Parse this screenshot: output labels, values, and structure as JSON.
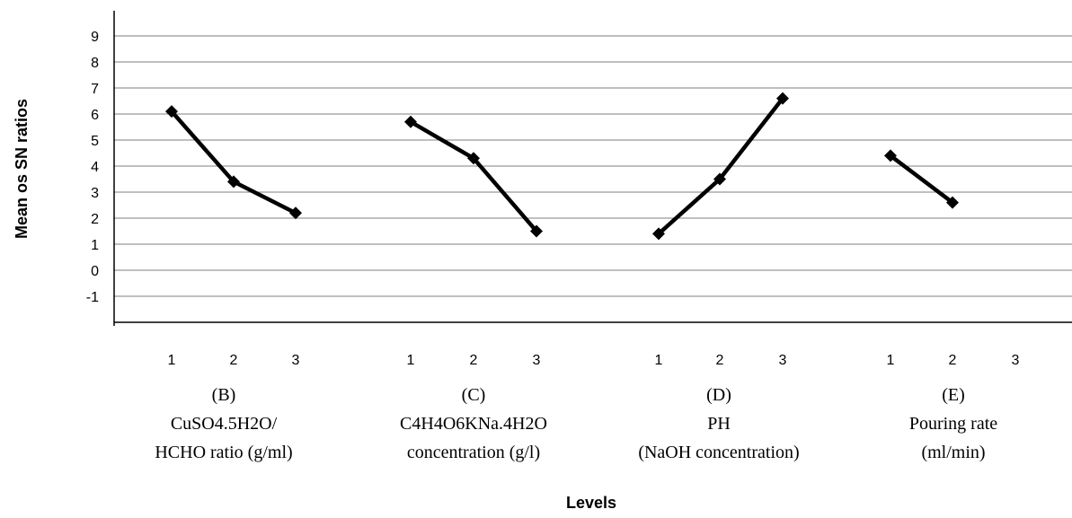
{
  "chart_data": {
    "type": "line",
    "ylabel": "Mean os SN ratios",
    "xlabel": "Levels",
    "ylim": [
      -2,
      10
    ],
    "yticks": [
      "9",
      "8",
      "7",
      "6",
      "5",
      "4",
      "3",
      "2",
      "1",
      "0",
      "-1"
    ],
    "grid": true,
    "groups": [
      {
        "label_lines": [
          "(B)",
          "CuSO4.5H2O/",
          "HCHO ratio (g/ml)"
        ],
        "levels": [
          "1",
          "2",
          "3"
        ],
        "values": [
          6.1,
          3.4,
          2.2
        ]
      },
      {
        "label_lines": [
          "(C)",
          "C4H4O6KNa.4H2O",
          "concentration (g/l)"
        ],
        "levels": [
          "1",
          "2",
          "3"
        ],
        "values": [
          5.7,
          4.3,
          1.5
        ]
      },
      {
        "label_lines": [
          "(D)",
          "PH",
          "(NaOH  concentration)"
        ],
        "levels": [
          "1",
          "2",
          "3"
        ],
        "values": [
          1.4,
          3.5,
          6.6
        ]
      },
      {
        "label_lines": [
          "(E)",
          "Pouring rate",
          "(ml/min)"
        ],
        "levels": [
          "1",
          "2",
          "3"
        ],
        "values": [
          4.4,
          2.6,
          null
        ]
      }
    ]
  }
}
